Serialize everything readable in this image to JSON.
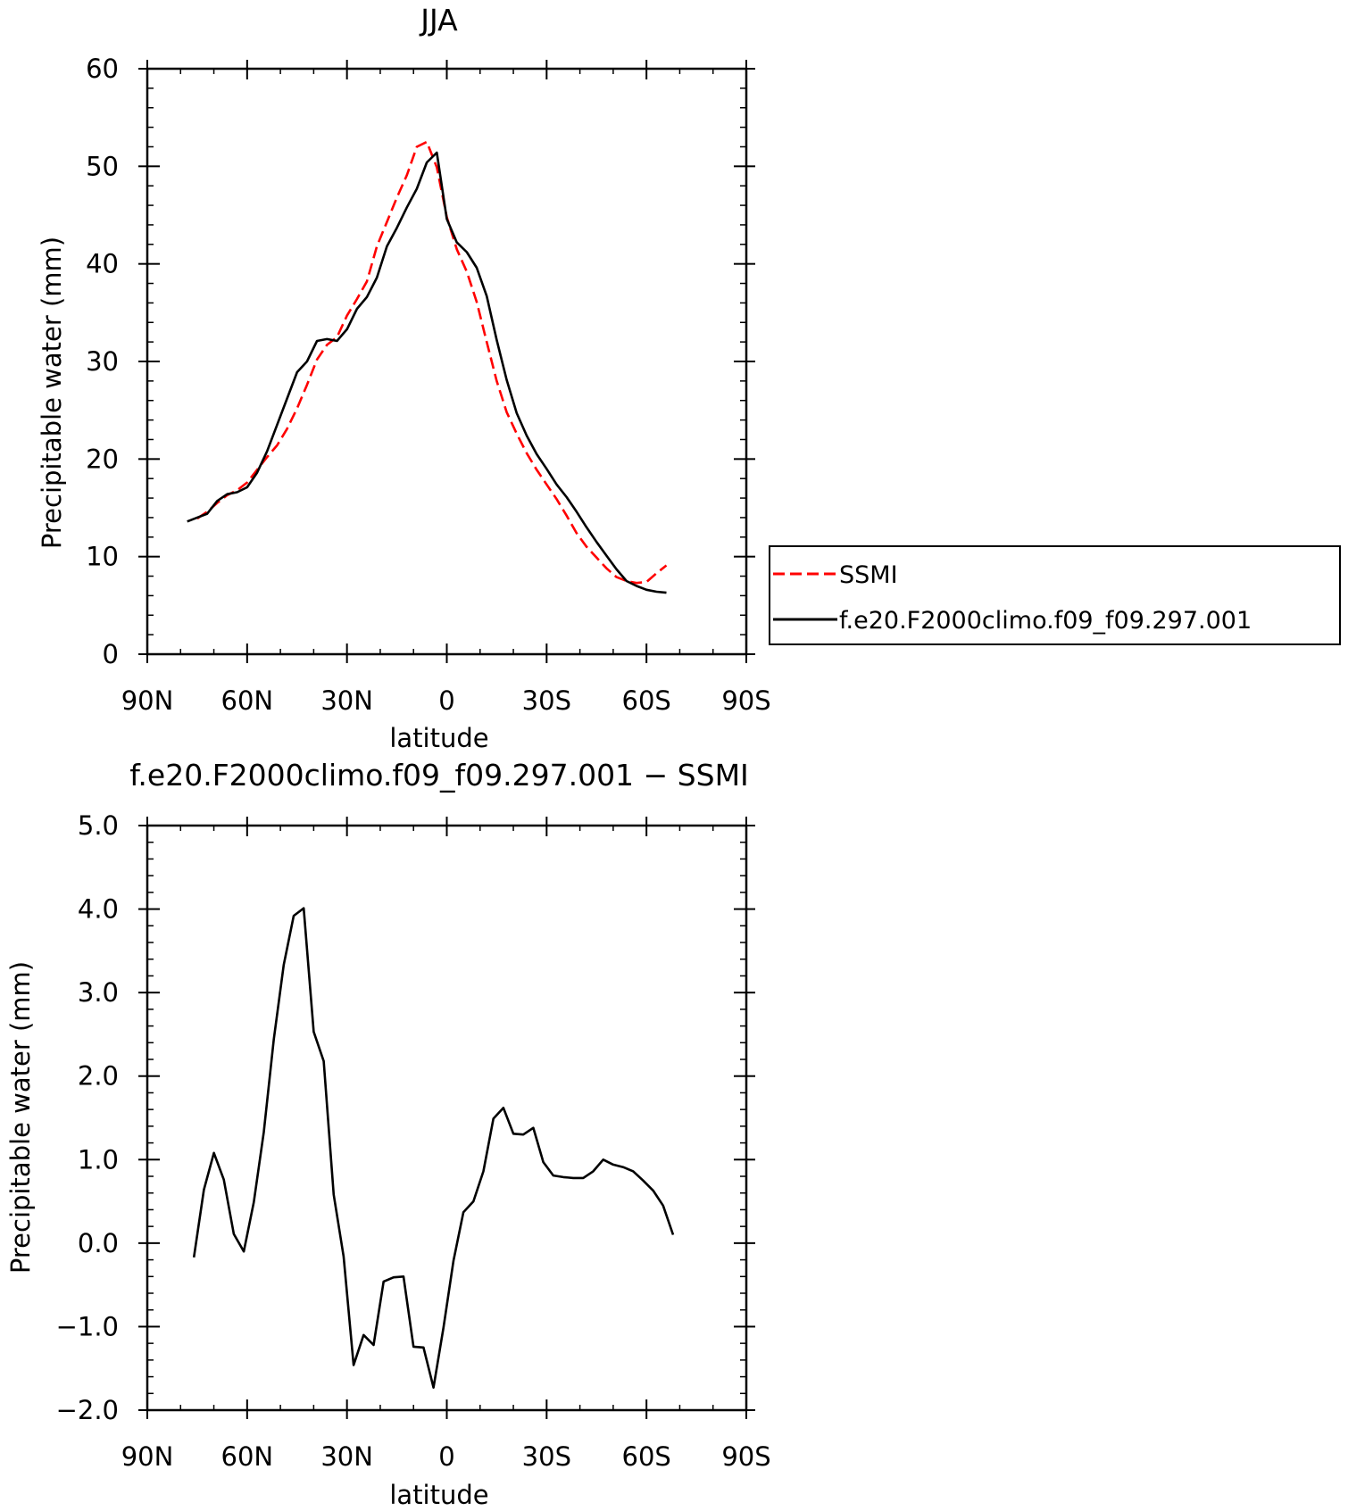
{
  "chart_data": [
    {
      "type": "line",
      "title": "JJA",
      "xlabel": "latitude",
      "ylabel": "Precipitable water (mm)",
      "xlim": [
        90,
        -90
      ],
      "ylim": [
        0,
        60
      ],
      "xticks": [
        90,
        60,
        30,
        0,
        -30,
        -60,
        -90
      ],
      "xtick_labels": [
        "90N",
        "60N",
        "30N",
        "0",
        "30S",
        "60S",
        "90S"
      ],
      "yticks": [
        0,
        10,
        20,
        30,
        40,
        50,
        60
      ],
      "ytick_labels": [
        "0",
        "10",
        "20",
        "30",
        "40",
        "50",
        "60"
      ],
      "grid": false,
      "legend_position": "right",
      "series": [
        {
          "name": "SSMI",
          "color": "#ff0000",
          "dash": "dashed",
          "x": [
            75,
            72,
            69,
            66,
            63,
            60,
            57,
            54,
            51,
            48,
            45,
            42,
            39,
            36,
            33,
            30,
            27,
            24,
            21,
            18,
            15,
            12,
            9,
            6,
            3,
            0,
            -3,
            -6,
            -9,
            -12,
            -15,
            -18,
            -21,
            -24,
            -27,
            -30,
            -33,
            -36,
            -39,
            -42,
            -45,
            -48,
            -51,
            -54,
            -57,
            -60,
            -63,
            -66
          ],
          "y": [
            13.9,
            14.6,
            15.5,
            16.3,
            16.8,
            17.6,
            18.9,
            20.2,
            21.4,
            23.1,
            25.2,
            27.6,
            30.2,
            31.7,
            32.5,
            34.7,
            36.4,
            38.2,
            41.8,
            44.3,
            46.8,
            49.1,
            52.0,
            52.5,
            49.9,
            44.8,
            41.5,
            39.2,
            36.1,
            32.0,
            28.0,
            24.8,
            22.6,
            20.6,
            18.9,
            17.4,
            15.9,
            14.2,
            12.4,
            11.0,
            9.9,
            8.8,
            7.9,
            7.5,
            7.3,
            7.4,
            8.3,
            9.1
          ]
        },
        {
          "name": "f.e20.F2000climo.f09_f09.297.001",
          "color": "#000000",
          "dash": "solid",
          "x": [
            78,
            75,
            72,
            69,
            66,
            63,
            60,
            57,
            54,
            51,
            48,
            45,
            42,
            39,
            36,
            33,
            30,
            27,
            24,
            21,
            18,
            15,
            12,
            9,
            6,
            3,
            0,
            -3,
            -6,
            -9,
            -12,
            -15,
            -18,
            -21,
            -24,
            -27,
            -30,
            -33,
            -36,
            -39,
            -42,
            -45,
            -48,
            -51,
            -54,
            -57,
            -60,
            -63,
            -66
          ],
          "y": [
            13.6,
            14.0,
            14.4,
            15.7,
            16.4,
            16.6,
            17.1,
            18.6,
            20.8,
            23.5,
            26.2,
            28.9,
            30.0,
            32.1,
            32.3,
            32.1,
            33.3,
            35.4,
            36.6,
            38.6,
            41.8,
            43.7,
            45.8,
            47.7,
            50.4,
            51.4,
            44.6,
            42.2,
            41.2,
            39.6,
            36.7,
            32.2,
            28.1,
            24.7,
            22.4,
            20.5,
            19.0,
            17.4,
            16.1,
            14.6,
            13.0,
            11.5,
            10.1,
            8.7,
            7.5,
            7.0,
            6.6,
            6.4,
            6.3
          ]
        }
      ]
    },
    {
      "type": "line",
      "title": "f.e20.F2000climo.f09_f09.297.001 − SSMI",
      "xlabel": "latitude",
      "ylabel": "Precipitable water (mm)",
      "xlim": [
        90,
        -90
      ],
      "ylim": [
        -2.0,
        5.0
      ],
      "xticks": [
        90,
        60,
        30,
        0,
        -30,
        -60,
        -90
      ],
      "xtick_labels": [
        "90N",
        "60N",
        "30N",
        "0",
        "30S",
        "60S",
        "90S"
      ],
      "yticks": [
        -2,
        -1,
        0,
        1,
        2,
        3,
        4,
        5
      ],
      "ytick_labels": [
        "−2.0",
        "−1.0",
        "0.0",
        "1.0",
        "2.0",
        "3.0",
        "4.0",
        "5.0"
      ],
      "grid": false,
      "series": [
        {
          "color": "#000000",
          "dash": "solid",
          "x": [
            76,
            73,
            70,
            67,
            64,
            61,
            58,
            55,
            52,
            49,
            46,
            43,
            40,
            37,
            34,
            31,
            28,
            25,
            22,
            19,
            16,
            13,
            10,
            7,
            4,
            1,
            -2,
            -5,
            -8,
            -11,
            -14,
            -17,
            -20,
            -23,
            -26,
            -29,
            -32,
            -35,
            -38,
            -41,
            -44,
            -47,
            -50,
            -53,
            -56,
            -59,
            -62,
            -65,
            -68
          ],
          "y": [
            -0.17,
            0.64,
            1.08,
            0.76,
            0.11,
            -0.1,
            0.49,
            1.33,
            2.44,
            3.33,
            3.92,
            4.01,
            2.53,
            2.18,
            0.58,
            -0.16,
            -1.46,
            -1.1,
            -1.22,
            -0.46,
            -0.41,
            -0.4,
            -1.24,
            -1.25,
            -1.73,
            -1.01,
            -0.21,
            0.37,
            0.5,
            0.86,
            1.49,
            1.62,
            1.31,
            1.3,
            1.38,
            0.97,
            0.81,
            0.79,
            0.78,
            0.78,
            0.86,
            1.0,
            0.94,
            0.91,
            0.86,
            0.75,
            0.63,
            0.45,
            0.1
          ]
        }
      ]
    }
  ]
}
